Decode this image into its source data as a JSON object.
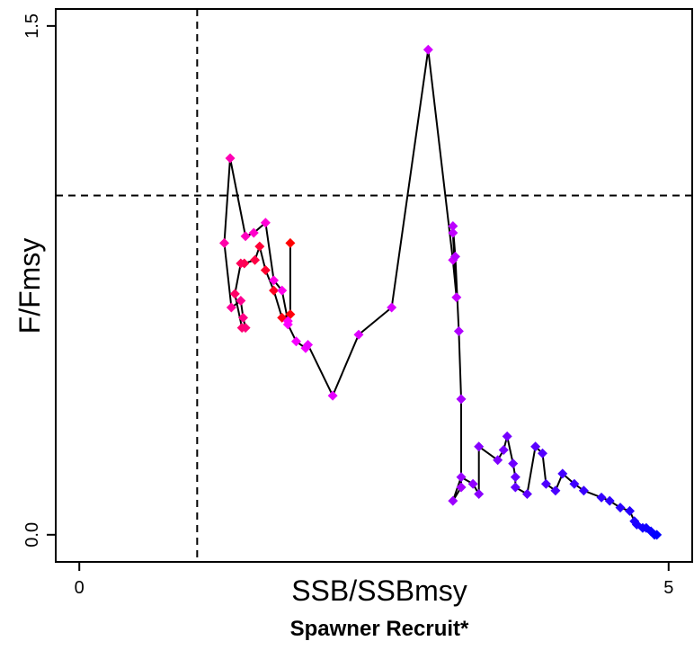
{
  "chart_data": {
    "type": "line",
    "title": "Spawner Recruit*",
    "xlabel": "SSB/SSBmsy",
    "ylabel": "F/Fmsy",
    "xlim": [
      -0.2,
      5.2
    ],
    "ylim": [
      -0.08,
      1.55
    ],
    "x_ticks": [
      0,
      5
    ],
    "x_tick_labels": [
      "0",
      "5"
    ],
    "y_ticks": [
      0,
      1.5
    ],
    "y_tick_labels": [
      "0.0",
      "1.5"
    ],
    "reference_lines": {
      "vertical_x": 1.0,
      "horizontal_y": 1.0
    },
    "grid": false,
    "legend": false,
    "series": [
      {
        "color_gradient": [
          "#ff0000",
          "#ff00ff",
          "#7700ff",
          "#0000ff"
        ],
        "x": [
          1.79,
          1.79,
          1.72,
          1.65,
          1.58,
          1.53,
          1.49,
          1.4,
          1.37,
          1.32,
          1.38,
          1.41,
          1.39,
          1.37,
          1.29,
          1.23,
          1.28,
          1.41,
          1.48,
          1.58,
          1.65,
          1.72,
          1.77,
          1.77,
          1.84,
          1.92,
          1.94,
          2.15,
          2.37,
          2.65,
          2.96,
          3.17,
          3.2,
          3.17,
          3.17,
          3.19,
          3.22,
          3.24,
          3.24,
          3.17,
          3.24,
          3.34,
          3.39,
          3.39,
          3.55,
          3.6,
          3.63,
          3.68,
          3.7,
          3.7,
          3.8,
          3.87,
          3.93,
          3.96,
          4.04,
          4.1,
          4.2,
          4.28,
          4.43,
          4.5,
          4.59,
          4.67,
          4.71,
          4.73,
          4.78,
          4.81,
          4.85,
          4.88,
          4.9
        ],
        "y": [
          0.86,
          0.65,
          0.64,
          0.72,
          0.78,
          0.85,
          0.81,
          0.8,
          0.8,
          0.71,
          0.61,
          0.61,
          0.64,
          0.69,
          0.67,
          0.86,
          1.11,
          0.88,
          0.89,
          0.92,
          0.75,
          0.72,
          0.63,
          0.62,
          0.57,
          0.55,
          0.56,
          0.41,
          0.59,
          0.67,
          1.43,
          0.81,
          0.7,
          0.89,
          0.91,
          0.82,
          0.6,
          0.4,
          0.14,
          0.1,
          0.17,
          0.15,
          0.12,
          0.26,
          0.22,
          0.25,
          0.29,
          0.21,
          0.17,
          0.14,
          0.12,
          0.26,
          0.24,
          0.15,
          0.13,
          0.18,
          0.15,
          0.13,
          0.11,
          0.1,
          0.08,
          0.07,
          0.04,
          0.03,
          0.02,
          0.02,
          0.01,
          0.0,
          0.0
        ]
      }
    ]
  }
}
